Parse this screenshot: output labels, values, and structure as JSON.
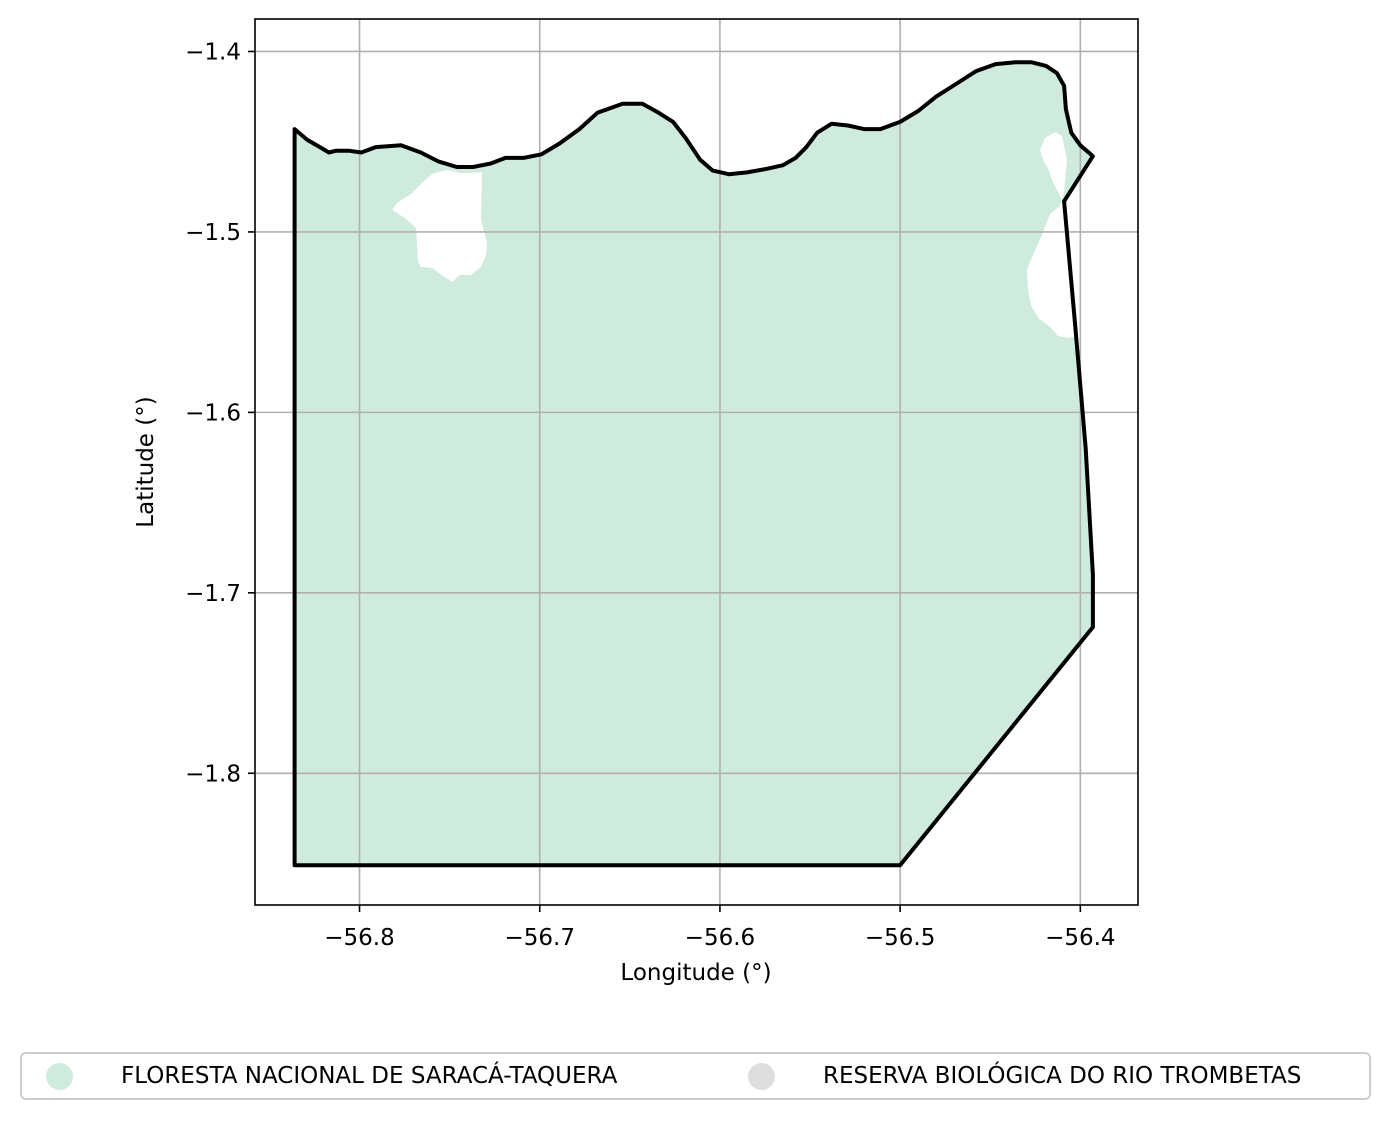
{
  "chart_data": {
    "type": "map",
    "title": "",
    "xlabel": "Longitude (°)",
    "ylabel": "Latitude (°)",
    "xlim": [
      -56.858,
      -56.368
    ],
    "ylim": [
      -1.873,
      -1.382
    ],
    "xticks": [
      -56.8,
      -56.7,
      -56.6,
      -56.5,
      -56.4
    ],
    "yticks": [
      -1.4,
      -1.5,
      -1.6,
      -1.7,
      -1.8
    ],
    "xtick_labels": [
      "−56.8",
      "−56.7",
      "−56.6",
      "−56.5",
      "−56.4"
    ],
    "ytick_labels": [
      "−1.4",
      "−1.5",
      "−1.6",
      "−1.7",
      "−1.8"
    ],
    "grid": true,
    "legend_position": "below",
    "series": [
      {
        "name": "FLORESTA NACIONAL DE SARACÁ-TAQUERA",
        "color": "#cfebde",
        "outline": [
          [
            -56.836,
            -1.443
          ],
          [
            -56.829,
            -1.449
          ],
          [
            -56.822,
            -1.453
          ],
          [
            -56.817,
            -1.456
          ],
          [
            -56.813,
            -1.455
          ],
          [
            -56.806,
            -1.455
          ],
          [
            -56.799,
            -1.456
          ],
          [
            -56.791,
            -1.453
          ],
          [
            -56.777,
            -1.452
          ],
          [
            -56.766,
            -1.456
          ],
          [
            -56.756,
            -1.461
          ],
          [
            -56.746,
            -1.464
          ],
          [
            -56.737,
            -1.464
          ],
          [
            -56.727,
            -1.462
          ],
          [
            -56.719,
            -1.459
          ],
          [
            -56.709,
            -1.459
          ],
          [
            -56.699,
            -1.457
          ],
          [
            -56.689,
            -1.451
          ],
          [
            -56.678,
            -1.443
          ],
          [
            -56.668,
            -1.434
          ],
          [
            -56.654,
            -1.429
          ],
          [
            -56.643,
            -1.429
          ],
          [
            -56.634,
            -1.434
          ],
          [
            -56.626,
            -1.439
          ],
          [
            -56.619,
            -1.448
          ],
          [
            -56.611,
            -1.46
          ],
          [
            -56.604,
            -1.466
          ],
          [
            -56.595,
            -1.468
          ],
          [
            -56.585,
            -1.467
          ],
          [
            -56.574,
            -1.465
          ],
          [
            -56.565,
            -1.463
          ],
          [
            -56.558,
            -1.459
          ],
          [
            -56.552,
            -1.453
          ],
          [
            -56.546,
            -1.445
          ],
          [
            -56.538,
            -1.44
          ],
          [
            -56.529,
            -1.441
          ],
          [
            -56.52,
            -1.443
          ],
          [
            -56.511,
            -1.443
          ],
          [
            -56.5,
            -1.439
          ],
          [
            -56.49,
            -1.433
          ],
          [
            -56.48,
            -1.425
          ],
          [
            -56.469,
            -1.418
          ],
          [
            -56.458,
            -1.411
          ],
          [
            -56.447,
            -1.407
          ],
          [
            -56.436,
            -1.406
          ],
          [
            -56.427,
            -1.406
          ],
          [
            -56.419,
            -1.408
          ],
          [
            -56.413,
            -1.412
          ],
          [
            -56.409,
            -1.419
          ],
          [
            -56.408,
            -1.432
          ],
          [
            -56.405,
            -1.445
          ],
          [
            -56.4,
            -1.452
          ],
          [
            -56.393,
            -1.458
          ],
          [
            -56.409,
            -1.483
          ],
          [
            -56.403,
            -1.55
          ],
          [
            -56.397,
            -1.62
          ],
          [
            -56.393,
            -1.69
          ],
          [
            -56.393,
            -1.719
          ],
          [
            -56.5,
            -1.851
          ],
          [
            -56.836,
            -1.851
          ]
        ]
      },
      {
        "name": "RESERVA BIOLÓGICA DO RIO TROMBETAS",
        "color": "#dedede"
      }
    ]
  }
}
